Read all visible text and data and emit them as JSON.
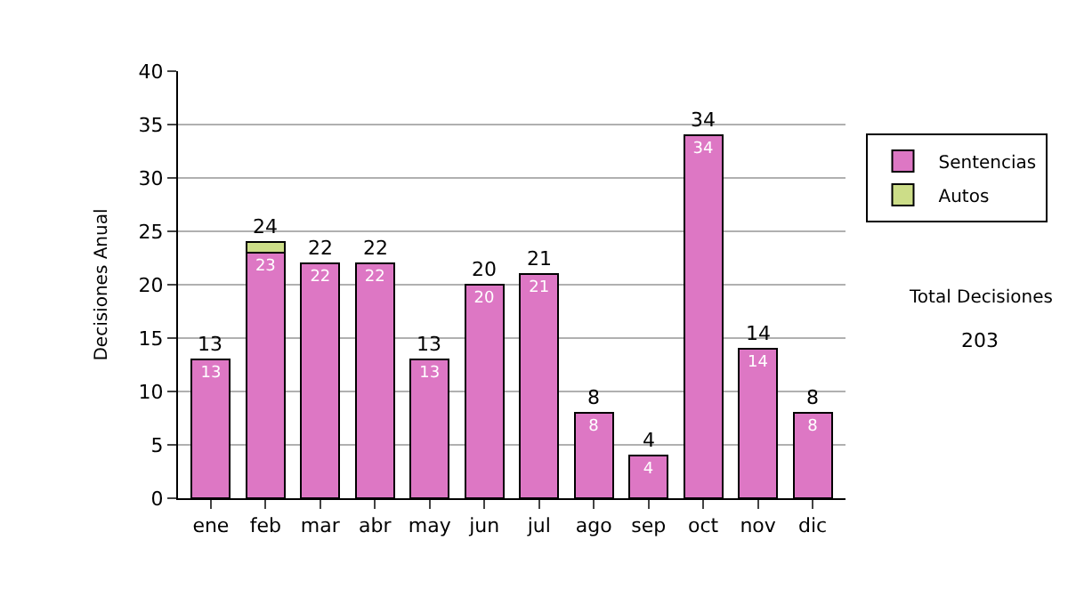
{
  "chart_data": {
    "type": "bar",
    "stacked": true,
    "ylabel": "Decisiones Anual",
    "categories": [
      "ene",
      "feb",
      "mar",
      "abr",
      "may",
      "jun",
      "jul",
      "ago",
      "sep",
      "oct",
      "nov",
      "dic"
    ],
    "series": [
      {
        "name": "Sentencias",
        "color": "#dd77c4",
        "values": [
          13,
          23,
          22,
          22,
          13,
          20,
          21,
          8,
          4,
          34,
          14,
          8
        ],
        "value_labels": [
          "13",
          "23",
          "22",
          "22",
          "13",
          "20",
          "21",
          "8",
          "4",
          "34",
          "14",
          "8"
        ]
      },
      {
        "name": "Autos",
        "color": "#ccdd88",
        "values": [
          null,
          1,
          null,
          null,
          null,
          null,
          null,
          null,
          null,
          null,
          null,
          null
        ]
      }
    ],
    "totals": [
      "13",
      "24",
      "22",
      "22",
      "13",
      "20",
      "21",
      "8",
      "4",
      "34",
      "14",
      "8"
    ],
    "ylim": [
      0,
      40
    ],
    "yticks": [
      0,
      5,
      10,
      15,
      20,
      25,
      30,
      35,
      40
    ],
    "grid": "y",
    "legend": "right",
    "annotations": [
      "Total Decisiones",
      "203"
    ]
  }
}
